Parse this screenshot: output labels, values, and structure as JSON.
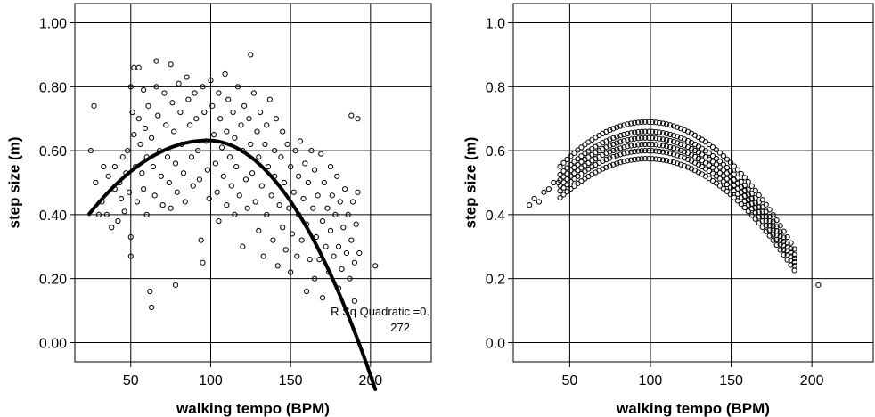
{
  "chart_data": [
    {
      "type": "scatter",
      "xlabel": "walking tempo (BPM)",
      "ylabel": "step size (m)",
      "xlim": [
        15,
        238
      ],
      "ylim": [
        -0.06,
        1.06
      ],
      "xticks": [
        50,
        100,
        150,
        200
      ],
      "xtick_labels": [
        "50",
        "100",
        "150",
        "200"
      ],
      "yticks": [
        0.0,
        0.2,
        0.4,
        0.6,
        0.8,
        1.0
      ],
      "ytick_labels": [
        "0.00",
        "0.20",
        "0.40",
        "0.60",
        "0.80",
        "1.00"
      ],
      "grid": true,
      "fit_line": {
        "type": "quadratic",
        "a": 0.62,
        "b": 0.0,
        "vertex_x": 98,
        "vertex_y": 0.632,
        "x_range": [
          24,
          203
        ]
      },
      "annotation": [
        "R Sq Quadratic =0.",
        "272"
      ],
      "points": [
        [
          25,
          0.6
        ],
        [
          27,
          0.74
        ],
        [
          28,
          0.5
        ],
        [
          30,
          0.4
        ],
        [
          32,
          0.44
        ],
        [
          33,
          0.55
        ],
        [
          35,
          0.4
        ],
        [
          36,
          0.52
        ],
        [
          38,
          0.36
        ],
        [
          40,
          0.48
        ],
        [
          40,
          0.55
        ],
        [
          42,
          0.38
        ],
        [
          43,
          0.5
        ],
        [
          44,
          0.45
        ],
        [
          45,
          0.58
        ],
        [
          46,
          0.41
        ],
        [
          47,
          0.53
        ],
        [
          48,
          0.6
        ],
        [
          49,
          0.47
        ],
        [
          50,
          0.27
        ],
        [
          50,
          0.33
        ],
        [
          50,
          0.8
        ],
        [
          51,
          0.72
        ],
        [
          52,
          0.86
        ],
        [
          52,
          0.65
        ],
        [
          53,
          0.55
        ],
        [
          54,
          0.44
        ],
        [
          55,
          0.86
        ],
        [
          55,
          0.7
        ],
        [
          56,
          0.62
        ],
        [
          57,
          0.53
        ],
        [
          58,
          0.79
        ],
        [
          58,
          0.48
        ],
        [
          59,
          0.67
        ],
        [
          60,
          0.58
        ],
        [
          60,
          0.4
        ],
        [
          61,
          0.74
        ],
        [
          62,
          0.16
        ],
        [
          63,
          0.11
        ],
        [
          63,
          0.64
        ],
        [
          64,
          0.55
        ],
        [
          65,
          0.46
        ],
        [
          66,
          0.88
        ],
        [
          66,
          0.8
        ],
        [
          67,
          0.71
        ],
        [
          68,
          0.6
        ],
        [
          69,
          0.52
        ],
        [
          70,
          0.43
        ],
        [
          71,
          0.78
        ],
        [
          72,
          0.68
        ],
        [
          73,
          0.58
        ],
        [
          74,
          0.5
        ],
        [
          75,
          0.87
        ],
        [
          75,
          0.42
        ],
        [
          76,
          0.75
        ],
        [
          77,
          0.66
        ],
        [
          78,
          0.56
        ],
        [
          78,
          0.18
        ],
        [
          79,
          0.47
        ],
        [
          80,
          0.81
        ],
        [
          81,
          0.72
        ],
        [
          82,
          0.62
        ],
        [
          83,
          0.53
        ],
        [
          84,
          0.44
        ],
        [
          85,
          0.83
        ],
        [
          86,
          0.76
        ],
        [
          87,
          0.68
        ],
        [
          88,
          0.58
        ],
        [
          89,
          0.49
        ],
        [
          90,
          0.78
        ],
        [
          91,
          0.7
        ],
        [
          92,
          0.6
        ],
        [
          93,
          0.51
        ],
        [
          94,
          0.32
        ],
        [
          95,
          0.25
        ],
        [
          95,
          0.8
        ],
        [
          96,
          0.72
        ],
        [
          97,
          0.63
        ],
        [
          98,
          0.54
        ],
        [
          99,
          0.45
        ],
        [
          100,
          0.82
        ],
        [
          101,
          0.74
        ],
        [
          102,
          0.65
        ],
        [
          103,
          0.56
        ],
        [
          104,
          0.47
        ],
        [
          105,
          0.38
        ],
        [
          105,
          0.78
        ],
        [
          106,
          0.7
        ],
        [
          107,
          0.61
        ],
        [
          108,
          0.52
        ],
        [
          109,
          0.84
        ],
        [
          110,
          0.43
        ],
        [
          110,
          0.66
        ],
        [
          111,
          0.76
        ],
        [
          112,
          0.58
        ],
        [
          113,
          0.49
        ],
        [
          114,
          0.72
        ],
        [
          115,
          0.4
        ],
        [
          115,
          0.64
        ],
        [
          116,
          0.55
        ],
        [
          117,
          0.8
        ],
        [
          118,
          0.46
        ],
        [
          119,
          0.68
        ],
        [
          120,
          0.3
        ],
        [
          120,
          0.6
        ],
        [
          121,
          0.74
        ],
        [
          122,
          0.51
        ],
        [
          123,
          0.42
        ],
        [
          124,
          0.7
        ],
        [
          125,
          0.62
        ],
        [
          125,
          0.9
        ],
        [
          126,
          0.53
        ],
        [
          127,
          0.78
        ],
        [
          128,
          0.44
        ],
        [
          129,
          0.66
        ],
        [
          130,
          0.35
        ],
        [
          130,
          0.58
        ],
        [
          131,
          0.72
        ],
        [
          132,
          0.49
        ],
        [
          133,
          0.27
        ],
        [
          134,
          0.62
        ],
        [
          135,
          0.4
        ],
        [
          135,
          0.68
        ],
        [
          136,
          0.55
        ],
        [
          137,
          0.76
        ],
        [
          138,
          0.46
        ],
        [
          139,
          0.32
        ],
        [
          140,
          0.6
        ],
        [
          140,
          0.52
        ],
        [
          141,
          0.7
        ],
        [
          142,
          0.24
        ],
        [
          143,
          0.43
        ],
        [
          144,
          0.58
        ],
        [
          145,
          0.36
        ],
        [
          145,
          0.66
        ],
        [
          146,
          0.5
        ],
        [
          147,
          0.29
        ],
        [
          148,
          0.62
        ],
        [
          149,
          0.42
        ],
        [
          150,
          0.55
        ],
        [
          150,
          0.22
        ],
        [
          151,
          0.34
        ],
        [
          152,
          0.47
        ],
        [
          153,
          0.6
        ],
        [
          154,
          0.27
        ],
        [
          155,
          0.4
        ],
        [
          155,
          0.52
        ],
        [
          156,
          0.63
        ],
        [
          157,
          0.32
        ],
        [
          158,
          0.45
        ],
        [
          159,
          0.56
        ],
        [
          160,
          0.16
        ],
        [
          160,
          0.37
        ],
        [
          161,
          0.5
        ],
        [
          162,
          0.26
        ],
        [
          163,
          0.6
        ],
        [
          164,
          0.42
        ],
        [
          165,
          0.2
        ],
        [
          165,
          0.54
        ],
        [
          166,
          0.33
        ],
        [
          167,
          0.46
        ],
        [
          168,
          0.26
        ],
        [
          169,
          0.59
        ],
        [
          170,
          0.38
        ],
        [
          170,
          0.14
        ],
        [
          171,
          0.5
        ],
        [
          172,
          0.3
        ],
        [
          173,
          0.42
        ],
        [
          174,
          0.22
        ],
        [
          175,
          0.55
        ],
        [
          175,
          0.35
        ],
        [
          176,
          0.46
        ],
        [
          177,
          0.27
        ],
        [
          178,
          0.4
        ],
        [
          179,
          0.52
        ],
        [
          180,
          0.3
        ],
        [
          180,
          0.17
        ],
        [
          181,
          0.44
        ],
        [
          182,
          0.23
        ],
        [
          183,
          0.36
        ],
        [
          184,
          0.48
        ],
        [
          185,
          0.28
        ],
        [
          186,
          0.4
        ],
        [
          187,
          0.2
        ],
        [
          188,
          0.71
        ],
        [
          188,
          0.32
        ],
        [
          189,
          0.44
        ],
        [
          190,
          0.13
        ],
        [
          190,
          0.25
        ],
        [
          191,
          0.37
        ],
        [
          192,
          0.47
        ],
        [
          192,
          0.7
        ],
        [
          193,
          0.28
        ],
        [
          203,
          0.24
        ]
      ]
    },
    {
      "type": "scatter",
      "xlabel": "walking tempo (BPM)",
      "ylabel": "step size (m)",
      "xlim": [
        15,
        238
      ],
      "ylim": [
        -0.06,
        1.06
      ],
      "xticks": [
        50,
        100,
        150,
        200
      ],
      "xtick_labels": [
        "50",
        "100",
        "150",
        "200"
      ],
      "yticks": [
        0.0,
        0.2,
        0.4,
        0.6,
        0.8,
        1.0
      ],
      "ytick_labels": [
        "0.0",
        "0.2",
        "0.4",
        "0.6",
        "0.8",
        "1.0"
      ],
      "grid": true,
      "band": {
        "x_range": [
          25,
          190
        ],
        "vertex_x": 98,
        "offsets": [
          0.575,
          0.6,
          0.62,
          0.64,
          0.66,
          0.69
        ],
        "curvature": 0.42
      },
      "points": [
        [
          25,
          0.43
        ],
        [
          28,
          0.45
        ],
        [
          31,
          0.44
        ],
        [
          34,
          0.47
        ],
        [
          37,
          0.48
        ],
        [
          40,
          0.5
        ],
        [
          43,
          0.5
        ],
        [
          204,
          0.18
        ]
      ]
    }
  ]
}
